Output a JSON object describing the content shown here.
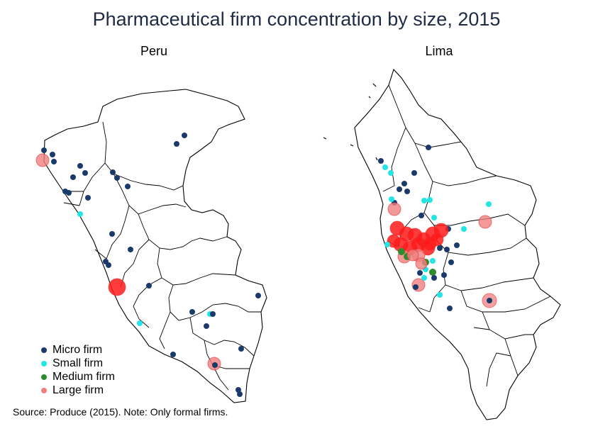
{
  "title": "Pharmaceutical firm concentration by size, 2015",
  "panels": [
    {
      "id": "peru",
      "title": "Peru"
    },
    {
      "id": "lima",
      "title": "Lima"
    }
  ],
  "legend": [
    {
      "key": "micro",
      "label": "Micro firm",
      "color": "#1a3a6b"
    },
    {
      "key": "small",
      "label": "Small firm",
      "color": "#22e5e5"
    },
    {
      "key": "medium",
      "label": "Medium firm",
      "color": "#2e8b2e"
    },
    {
      "key": "large",
      "label": "Large firm",
      "color": "#f08080"
    }
  ],
  "source_note": "Source: Produce (2015). Note: Only formal firms."
}
